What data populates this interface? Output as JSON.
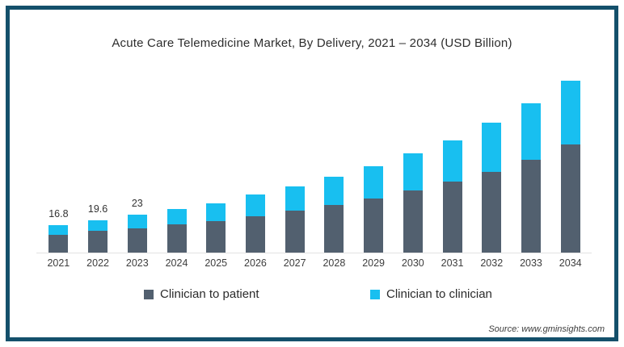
{
  "frame": {
    "border_color": "#14506B",
    "background": "#FFFFFF"
  },
  "chart_data": {
    "type": "bar",
    "stacked": true,
    "title": "Acute Care Telemedicine Market, By Delivery, 2021 – 2034 (USD Billion)",
    "unit": "USD Billion",
    "categories": [
      "2021",
      "2022",
      "2023",
      "2024",
      "2025",
      "2026",
      "2027",
      "2028",
      "2029",
      "2030",
      "2031",
      "2032",
      "2033",
      "2034"
    ],
    "series": [
      {
        "name": "Clinician to patient",
        "color": "#52606F",
        "values": [
          11.0,
          13.0,
          14.9,
          16.9,
          19.2,
          22.1,
          25.4,
          28.7,
          32.6,
          37.8,
          42.8,
          49.1,
          56.4,
          65.3
        ]
      },
      {
        "name": "Clinician to clinician",
        "color": "#18BFF0",
        "values": [
          5.8,
          6.6,
          8.1,
          9.3,
          10.8,
          12.9,
          14.8,
          17.1,
          19.8,
          22.5,
          25.3,
          29.8,
          34.1,
          38.7
        ]
      }
    ],
    "totals": [
      16.8,
      19.6,
      23.0,
      26.2,
      30.0,
      35.0,
      40.2,
      45.8,
      52.4,
      60.3,
      68.1,
      78.9,
      90.5,
      104.0
    ],
    "data_labels": [
      "16.8",
      "19.6",
      "23",
      "",
      "",
      "",
      "",
      "",
      "",
      "",
      "",
      "",
      "",
      ""
    ],
    "ylim": [
      0,
      110
    ],
    "grid": false,
    "legend_position": "bottom"
  },
  "source": {
    "text": "Source: www.gminsights.com"
  }
}
